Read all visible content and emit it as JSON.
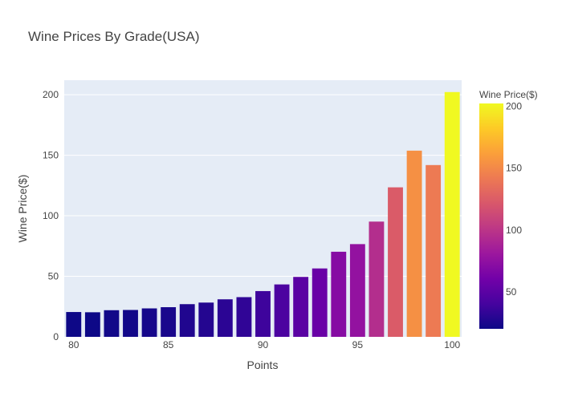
{
  "chart_data": {
    "type": "bar",
    "title": "Wine Prices By Grade(USA)",
    "xlabel": "Points",
    "ylabel": "Wine Price($)",
    "x": [
      80,
      81,
      82,
      83,
      84,
      85,
      86,
      87,
      88,
      89,
      90,
      91,
      92,
      93,
      94,
      95,
      96,
      97,
      98,
      99,
      100
    ],
    "values": [
      20.5,
      20.3,
      22.0,
      22.2,
      23.5,
      24.5,
      27.0,
      28.3,
      31.0,
      32.8,
      37.8,
      43.3,
      49.5,
      56.5,
      70.3,
      76.6,
      95.2,
      123.5,
      153.8,
      141.9,
      202.2
    ],
    "xlim": [
      79.5,
      100.5
    ],
    "ylim": [
      0,
      212
    ],
    "x_ticks": [
      "80",
      "85",
      "90",
      "95",
      "100"
    ],
    "y_ticks": [
      "0",
      "50",
      "100",
      "150",
      "200"
    ],
    "grid": true,
    "background_color": "#e5ecf6",
    "colorbar": {
      "title": "Wine Price($)",
      "ticks": [
        "50",
        "100",
        "150",
        "200"
      ],
      "range": [
        20.3,
        202.2
      ],
      "colorscale": [
        "#0d0887",
        "#46039f",
        "#7201a8",
        "#9c179e",
        "#bd3786",
        "#d8576b",
        "#ed7953",
        "#fb9f3a",
        "#fdca26",
        "#f0f921"
      ]
    }
  }
}
